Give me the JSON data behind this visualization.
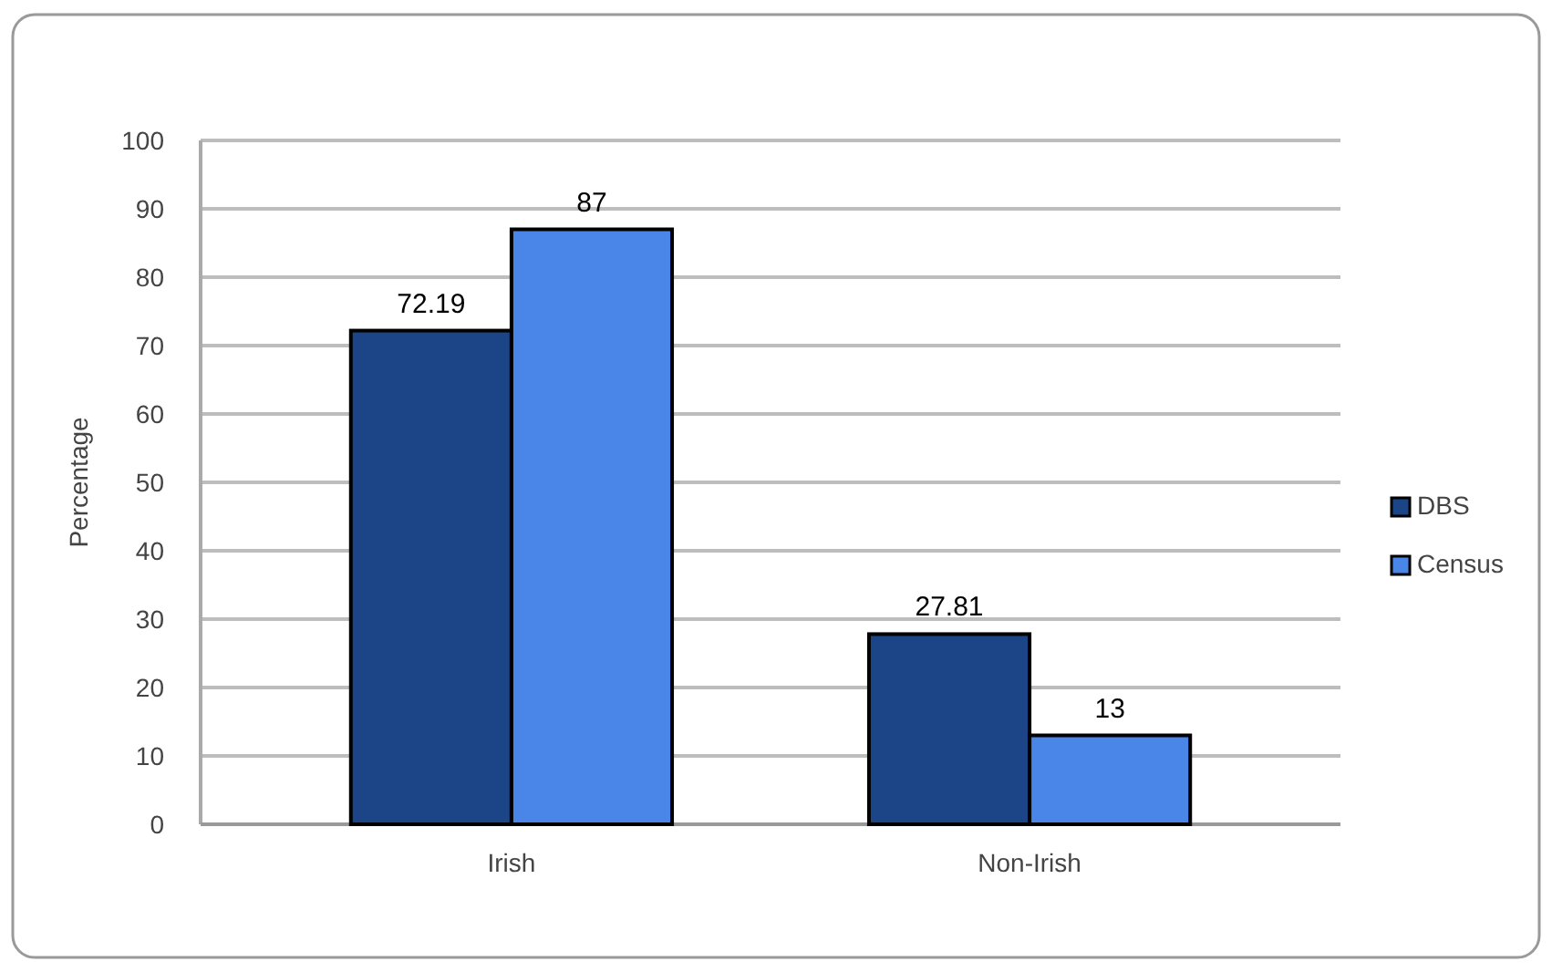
{
  "chart_data": {
    "type": "bar",
    "ylabel": "Percentage",
    "categories": [
      "Irish",
      "Non-Irish"
    ],
    "series": [
      {
        "name": "DBS",
        "color": "#1c4587",
        "values": [
          72.19,
          27.81
        ]
      },
      {
        "name": "Census",
        "color": "#4a86e8",
        "values": [
          87,
          13
        ]
      }
    ],
    "ylim": [
      0,
      100
    ],
    "yticks": [
      0,
      10,
      20,
      30,
      40,
      50,
      60,
      70,
      80,
      90,
      100
    ],
    "grid": "y",
    "legend": "right",
    "data_labels": true
  }
}
